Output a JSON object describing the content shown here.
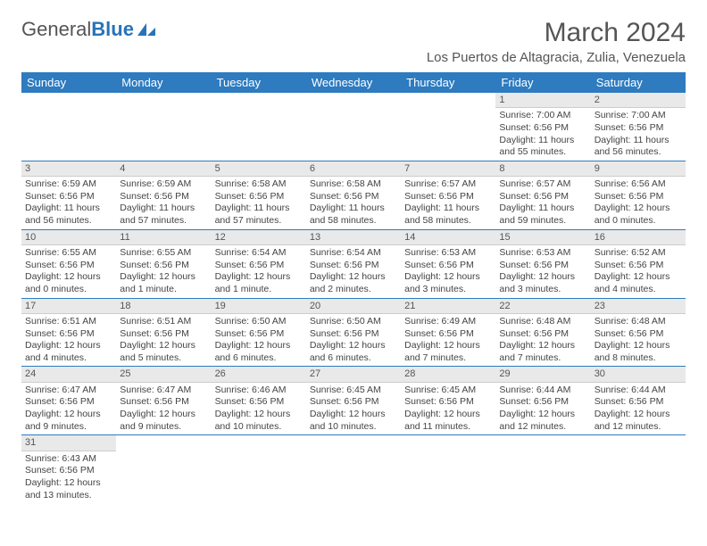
{
  "logo": {
    "part1": "General",
    "part2": "Blue"
  },
  "title": "March 2024",
  "location": "Los Puertos de Altagracia, Zulia, Venezuela",
  "colors": {
    "header_bg": "#2e7bbf",
    "header_fg": "#ffffff",
    "daynum_bg": "#e9e9e9",
    "row_border": "#2e7bbf",
    "text": "#444444",
    "title_color": "#555555"
  },
  "weekdays": [
    "Sunday",
    "Monday",
    "Tuesday",
    "Wednesday",
    "Thursday",
    "Friday",
    "Saturday"
  ],
  "weeks": [
    [
      null,
      null,
      null,
      null,
      null,
      {
        "n": "1",
        "sr": "Sunrise: 7:00 AM",
        "ss": "Sunset: 6:56 PM",
        "dl1": "Daylight: 11 hours",
        "dl2": "and 55 minutes."
      },
      {
        "n": "2",
        "sr": "Sunrise: 7:00 AM",
        "ss": "Sunset: 6:56 PM",
        "dl1": "Daylight: 11 hours",
        "dl2": "and 56 minutes."
      }
    ],
    [
      {
        "n": "3",
        "sr": "Sunrise: 6:59 AM",
        "ss": "Sunset: 6:56 PM",
        "dl1": "Daylight: 11 hours",
        "dl2": "and 56 minutes."
      },
      {
        "n": "4",
        "sr": "Sunrise: 6:59 AM",
        "ss": "Sunset: 6:56 PM",
        "dl1": "Daylight: 11 hours",
        "dl2": "and 57 minutes."
      },
      {
        "n": "5",
        "sr": "Sunrise: 6:58 AM",
        "ss": "Sunset: 6:56 PM",
        "dl1": "Daylight: 11 hours",
        "dl2": "and 57 minutes."
      },
      {
        "n": "6",
        "sr": "Sunrise: 6:58 AM",
        "ss": "Sunset: 6:56 PM",
        "dl1": "Daylight: 11 hours",
        "dl2": "and 58 minutes."
      },
      {
        "n": "7",
        "sr": "Sunrise: 6:57 AM",
        "ss": "Sunset: 6:56 PM",
        "dl1": "Daylight: 11 hours",
        "dl2": "and 58 minutes."
      },
      {
        "n": "8",
        "sr": "Sunrise: 6:57 AM",
        "ss": "Sunset: 6:56 PM",
        "dl1": "Daylight: 11 hours",
        "dl2": "and 59 minutes."
      },
      {
        "n": "9",
        "sr": "Sunrise: 6:56 AM",
        "ss": "Sunset: 6:56 PM",
        "dl1": "Daylight: 12 hours",
        "dl2": "and 0 minutes."
      }
    ],
    [
      {
        "n": "10",
        "sr": "Sunrise: 6:55 AM",
        "ss": "Sunset: 6:56 PM",
        "dl1": "Daylight: 12 hours",
        "dl2": "and 0 minutes."
      },
      {
        "n": "11",
        "sr": "Sunrise: 6:55 AM",
        "ss": "Sunset: 6:56 PM",
        "dl1": "Daylight: 12 hours",
        "dl2": "and 1 minute."
      },
      {
        "n": "12",
        "sr": "Sunrise: 6:54 AM",
        "ss": "Sunset: 6:56 PM",
        "dl1": "Daylight: 12 hours",
        "dl2": "and 1 minute."
      },
      {
        "n": "13",
        "sr": "Sunrise: 6:54 AM",
        "ss": "Sunset: 6:56 PM",
        "dl1": "Daylight: 12 hours",
        "dl2": "and 2 minutes."
      },
      {
        "n": "14",
        "sr": "Sunrise: 6:53 AM",
        "ss": "Sunset: 6:56 PM",
        "dl1": "Daylight: 12 hours",
        "dl2": "and 3 minutes."
      },
      {
        "n": "15",
        "sr": "Sunrise: 6:53 AM",
        "ss": "Sunset: 6:56 PM",
        "dl1": "Daylight: 12 hours",
        "dl2": "and 3 minutes."
      },
      {
        "n": "16",
        "sr": "Sunrise: 6:52 AM",
        "ss": "Sunset: 6:56 PM",
        "dl1": "Daylight: 12 hours",
        "dl2": "and 4 minutes."
      }
    ],
    [
      {
        "n": "17",
        "sr": "Sunrise: 6:51 AM",
        "ss": "Sunset: 6:56 PM",
        "dl1": "Daylight: 12 hours",
        "dl2": "and 4 minutes."
      },
      {
        "n": "18",
        "sr": "Sunrise: 6:51 AM",
        "ss": "Sunset: 6:56 PM",
        "dl1": "Daylight: 12 hours",
        "dl2": "and 5 minutes."
      },
      {
        "n": "19",
        "sr": "Sunrise: 6:50 AM",
        "ss": "Sunset: 6:56 PM",
        "dl1": "Daylight: 12 hours",
        "dl2": "and 6 minutes."
      },
      {
        "n": "20",
        "sr": "Sunrise: 6:50 AM",
        "ss": "Sunset: 6:56 PM",
        "dl1": "Daylight: 12 hours",
        "dl2": "and 6 minutes."
      },
      {
        "n": "21",
        "sr": "Sunrise: 6:49 AM",
        "ss": "Sunset: 6:56 PM",
        "dl1": "Daylight: 12 hours",
        "dl2": "and 7 minutes."
      },
      {
        "n": "22",
        "sr": "Sunrise: 6:48 AM",
        "ss": "Sunset: 6:56 PM",
        "dl1": "Daylight: 12 hours",
        "dl2": "and 7 minutes."
      },
      {
        "n": "23",
        "sr": "Sunrise: 6:48 AM",
        "ss": "Sunset: 6:56 PM",
        "dl1": "Daylight: 12 hours",
        "dl2": "and 8 minutes."
      }
    ],
    [
      {
        "n": "24",
        "sr": "Sunrise: 6:47 AM",
        "ss": "Sunset: 6:56 PM",
        "dl1": "Daylight: 12 hours",
        "dl2": "and 9 minutes."
      },
      {
        "n": "25",
        "sr": "Sunrise: 6:47 AM",
        "ss": "Sunset: 6:56 PM",
        "dl1": "Daylight: 12 hours",
        "dl2": "and 9 minutes."
      },
      {
        "n": "26",
        "sr": "Sunrise: 6:46 AM",
        "ss": "Sunset: 6:56 PM",
        "dl1": "Daylight: 12 hours",
        "dl2": "and 10 minutes."
      },
      {
        "n": "27",
        "sr": "Sunrise: 6:45 AM",
        "ss": "Sunset: 6:56 PM",
        "dl1": "Daylight: 12 hours",
        "dl2": "and 10 minutes."
      },
      {
        "n": "28",
        "sr": "Sunrise: 6:45 AM",
        "ss": "Sunset: 6:56 PM",
        "dl1": "Daylight: 12 hours",
        "dl2": "and 11 minutes."
      },
      {
        "n": "29",
        "sr": "Sunrise: 6:44 AM",
        "ss": "Sunset: 6:56 PM",
        "dl1": "Daylight: 12 hours",
        "dl2": "and 12 minutes."
      },
      {
        "n": "30",
        "sr": "Sunrise: 6:44 AM",
        "ss": "Sunset: 6:56 PM",
        "dl1": "Daylight: 12 hours",
        "dl2": "and 12 minutes."
      }
    ],
    [
      {
        "n": "31",
        "sr": "Sunrise: 6:43 AM",
        "ss": "Sunset: 6:56 PM",
        "dl1": "Daylight: 12 hours",
        "dl2": "and 13 minutes."
      },
      null,
      null,
      null,
      null,
      null,
      null
    ]
  ]
}
